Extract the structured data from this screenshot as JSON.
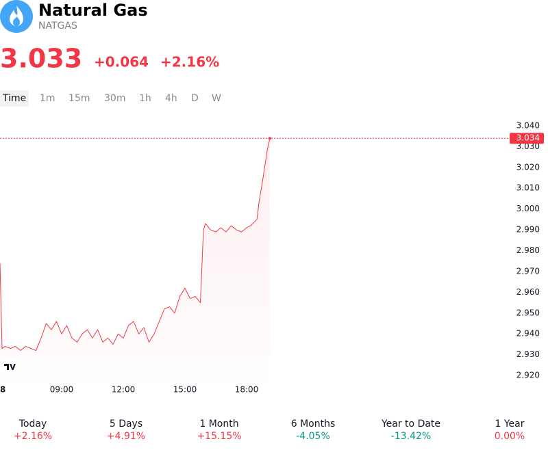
{
  "header": {
    "title": "Natural Gas",
    "symbol": "NATGAS",
    "price": "3.033",
    "change": "+0.064",
    "change_pct": "+2.16%"
  },
  "timeframes": [
    "Time",
    "1m",
    "15m",
    "30m",
    "1h",
    "4h",
    "D",
    "W"
  ],
  "chart_data": {
    "type": "line",
    "color": "#f23645",
    "x": [
      6.0,
      6.1,
      6.25,
      6.5,
      6.75,
      7.0,
      7.25,
      7.5,
      7.75,
      8.0,
      8.25,
      8.5,
      8.75,
      9.0,
      9.25,
      9.5,
      9.75,
      10.0,
      10.25,
      10.5,
      10.75,
      11.0,
      11.25,
      11.5,
      11.75,
      12.0,
      12.25,
      12.5,
      12.75,
      13.0,
      13.25,
      13.5,
      13.75,
      14.0,
      14.25,
      14.5,
      14.75,
      15.0,
      15.25,
      15.5,
      15.75,
      15.9,
      16.0,
      16.25,
      16.5,
      16.75,
      17.0,
      17.25,
      17.5,
      17.75,
      18.0,
      18.2,
      18.5,
      18.6,
      18.8,
      19.0,
      19.13
    ],
    "values": [
      2.974,
      2.933,
      2.934,
      2.933,
      2.934,
      2.932,
      2.934,
      2.933,
      2.932,
      2.938,
      2.945,
      2.942,
      2.946,
      2.94,
      2.944,
      2.938,
      2.936,
      2.94,
      2.942,
      2.938,
      2.942,
      2.936,
      2.938,
      2.935,
      2.94,
      2.938,
      2.944,
      2.946,
      2.94,
      2.943,
      2.936,
      2.94,
      2.946,
      2.952,
      2.953,
      2.95,
      2.958,
      2.962,
      2.957,
      2.958,
      2.955,
      2.99,
      2.993,
      2.99,
      2.989,
      2.991,
      2.989,
      2.992,
      2.99,
      2.989,
      2.991,
      2.992,
      2.995,
      3.003,
      3.015,
      3.028,
      3.034
    ],
    "xlim": [
      6,
      24
    ],
    "xticks": [
      {
        "value": 6,
        "label": "8"
      },
      {
        "value": 9,
        "label": "09:00"
      },
      {
        "value": 12,
        "label": "12:00"
      },
      {
        "value": 15,
        "label": "15:00"
      },
      {
        "value": 18,
        "label": "18:00"
      }
    ],
    "ylim": [
      2.916,
      3.044
    ],
    "yticks": [
      {
        "value": 2.92,
        "label": "2.920"
      },
      {
        "value": 2.93,
        "label": "2.930"
      },
      {
        "value": 2.94,
        "label": "2.940"
      },
      {
        "value": 2.95,
        "label": "2.950"
      },
      {
        "value": 2.96,
        "label": "2.960"
      },
      {
        "value": 2.97,
        "label": "2.970"
      },
      {
        "value": 2.98,
        "label": "2.980"
      },
      {
        "value": 2.99,
        "label": "2.990"
      },
      {
        "value": 3.0,
        "label": "3.000"
      },
      {
        "value": 3.01,
        "label": "3.010"
      },
      {
        "value": 3.02,
        "label": "3.020"
      },
      {
        "value": 3.03,
        "label": "3.030"
      },
      {
        "value": 3.04,
        "label": "3.040"
      }
    ],
    "last_price": 3.034
  },
  "stats": [
    {
      "period": "Today",
      "change": "+2.16%",
      "color": "#f23645"
    },
    {
      "period": "5 Days",
      "change": "+4.91%",
      "color": "#f23645"
    },
    {
      "period": "1 Month",
      "change": "+15.15%",
      "color": "#f23645"
    },
    {
      "period": "6 Months",
      "change": "-4.05%",
      "color": "#089981"
    },
    {
      "period": "Year to Date",
      "change": "-13.42%",
      "color": "#089981"
    },
    {
      "period": "1 Year",
      "change": "0.00%",
      "color": "#f23645"
    }
  ]
}
